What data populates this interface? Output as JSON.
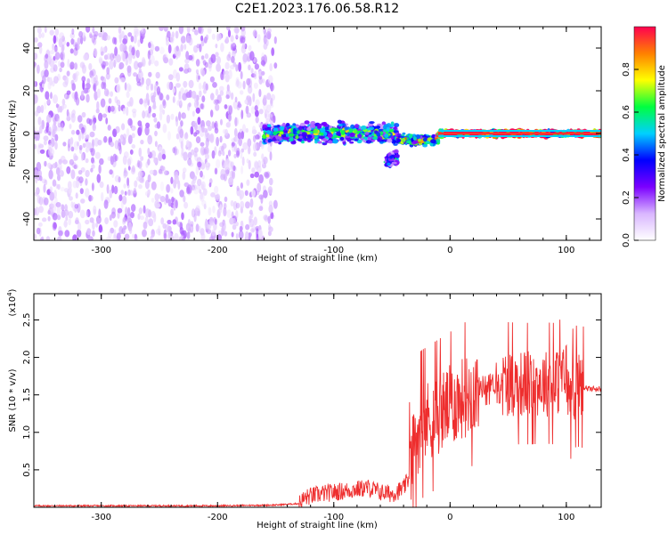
{
  "chart_data": [
    {
      "type": "heatmap",
      "title": "C2E1.2023.176.06.58.R12",
      "xlabel": "Height of straight line (km)",
      "ylabel": "Frequency (Hz)",
      "xlim": [
        -358,
        130
      ],
      "ylim": [
        -50,
        50
      ],
      "xticks": [
        -300,
        -200,
        -100,
        0,
        100
      ],
      "yticks": [
        -40,
        -20,
        0,
        20,
        40
      ],
      "colorbar": {
        "label": "Normalized spectral amplitude",
        "range": [
          0.0,
          1.0
        ],
        "ticks": [
          "0.0",
          "0.2",
          "0.4",
          "0.6",
          "0.8"
        ],
        "colors": [
          "#ffffff",
          "#d9b6ff",
          "#7b00ff",
          "#0000ff",
          "#00d0ff",
          "#00ff40",
          "#ffff00",
          "#ff8000",
          "#ff0050"
        ]
      },
      "regions": [
        {
          "x": [
            -358,
            -150
          ],
          "freq_center": 0,
          "freq_spread": 50,
          "amplitude": 0.12,
          "note": "broadband noise"
        },
        {
          "x": [
            -160,
            -45
          ],
          "freq_center": 0,
          "freq_spread": 6,
          "amplitude": 0.35
        },
        {
          "x": [
            -55,
            -45
          ],
          "freq_center": -12,
          "freq_spread": 5,
          "amplitude": 0.3
        },
        {
          "x": [
            -45,
            -10
          ],
          "freq_center": -3,
          "freq_spread": 3,
          "amplitude": 0.45
        },
        {
          "x": [
            -10,
            130
          ],
          "freq_center": 0,
          "freq_spread": 2,
          "amplitude": 0.9
        }
      ]
    },
    {
      "type": "line",
      "xlabel": "Height of straight line (km)",
      "ylabel": "SNR (10 * v/v)",
      "yscale_label": "(x10",
      "yscale_exp": "4",
      "yscale_close": ")",
      "xlim": [
        -358,
        130
      ],
      "ylim": [
        0,
        2.85
      ],
      "xticks": [
        -300,
        -200,
        -100,
        0,
        100
      ],
      "yticks": [
        0.5,
        1.0,
        1.5,
        2.0,
        2.5
      ],
      "series": [
        {
          "color": "#ee2e2e",
          "x": [
            -358,
            -300,
            -250,
            -200,
            -150,
            -130,
            -125,
            -120,
            -110,
            -100,
            -90,
            -80,
            -70,
            -60,
            -50,
            -40,
            -35,
            -30,
            -25,
            -20,
            -15,
            -10,
            -5,
            0,
            10,
            20,
            30,
            40,
            50,
            60,
            70,
            80,
            90,
            95,
            100,
            103,
            106,
            110,
            115,
            120,
            130
          ],
          "y": [
            0.02,
            0.02,
            0.02,
            0.02,
            0.03,
            0.05,
            0.12,
            0.15,
            0.18,
            0.2,
            0.22,
            0.24,
            0.26,
            0.2,
            0.18,
            0.25,
            0.4,
            0.9,
            1.1,
            1.15,
            1.2,
            1.25,
            1.3,
            1.35,
            1.45,
            1.55,
            1.63,
            1.66,
            1.66,
            1.65,
            1.65,
            1.66,
            1.65,
            1.7,
            1.8,
            1.4,
            1.6,
            1.62,
            1.6,
            1.58,
            1.58
          ]
        }
      ]
    }
  ]
}
